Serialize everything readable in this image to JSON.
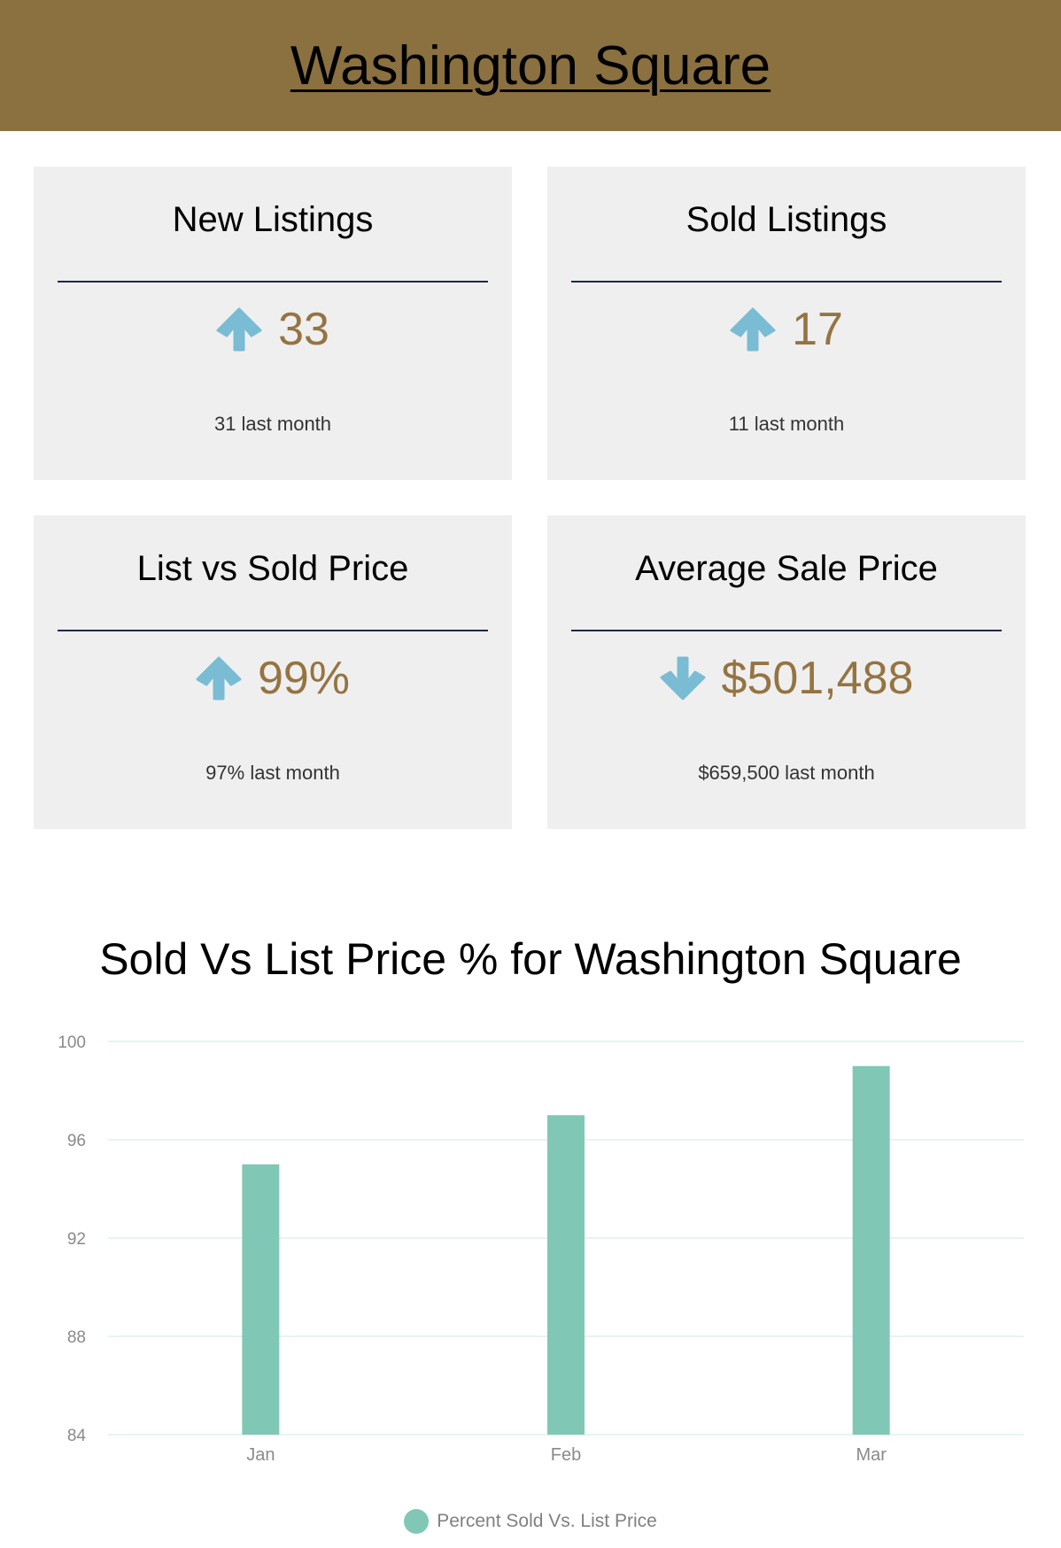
{
  "header": {
    "title": "Washington Square",
    "background": "#8b7040"
  },
  "colors": {
    "value_text": "#957442",
    "arrow": "#79bcd4",
    "card_bg": "#efefef",
    "divider": "#1c2a48",
    "bar": "#80c8b5",
    "gridline": "#dfeff0",
    "tick_text": "#8a8a8a"
  },
  "cards": [
    {
      "title": "New Listings",
      "trend": "up",
      "arrow_icon": "arrow-up-icon",
      "value": "33",
      "previous": "31 last month"
    },
    {
      "title": "Sold Listings",
      "trend": "up",
      "arrow_icon": "arrow-up-icon",
      "value": "17",
      "previous": "11 last month"
    },
    {
      "title": "List vs Sold Price",
      "trend": "up",
      "arrow_icon": "arrow-up-icon",
      "value": "99%",
      "previous": "97% last month"
    },
    {
      "title": "Average Sale Price",
      "trend": "down",
      "arrow_icon": "arrow-down-icon",
      "value": "$501,488",
      "previous": "$659,500 last month"
    }
  ],
  "chart_data": {
    "type": "bar",
    "title": "Sold Vs List Price % for Washington Square",
    "categories": [
      "Jan",
      "Feb",
      "Mar"
    ],
    "series": [
      {
        "name": "Percent Sold Vs. List Price",
        "values": [
          95,
          97,
          99
        ]
      }
    ],
    "ylim": [
      84,
      100
    ],
    "yticks": [
      84,
      88,
      92,
      96,
      100
    ],
    "xlabel": "",
    "ylabel": "",
    "grid": true,
    "legend_position": "bottom"
  }
}
